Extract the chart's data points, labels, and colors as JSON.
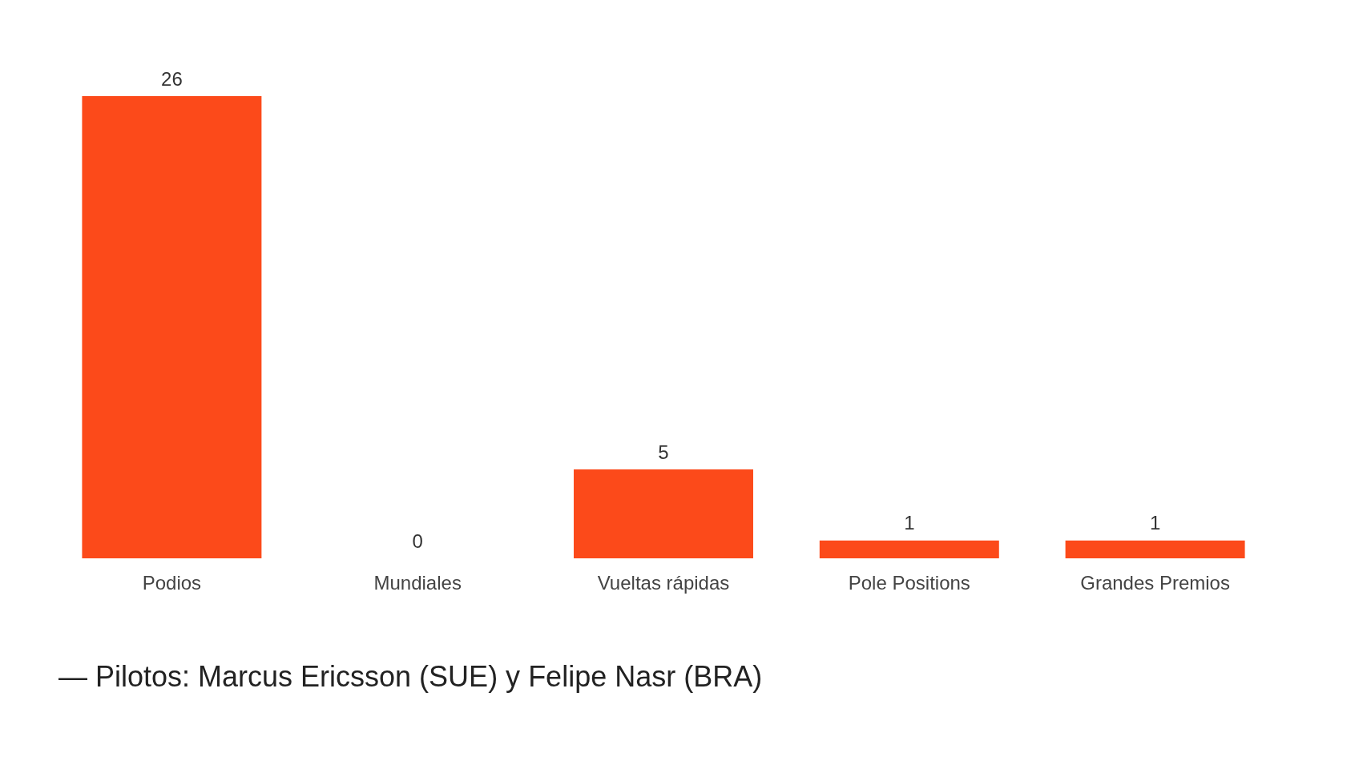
{
  "chart_data": {
    "type": "bar",
    "categories": [
      "Podios",
      "Mundiales",
      "Vueltas rápidas",
      "Pole Positions",
      "Grandes Premios"
    ],
    "values": [
      26,
      0,
      5,
      1,
      1
    ],
    "color": "#fc4a1a",
    "data_labels": true,
    "annotations": [
      "— Pilotos: Marcus Ericsson (SUE) y Felipe Nasr (BRA)"
    ]
  }
}
